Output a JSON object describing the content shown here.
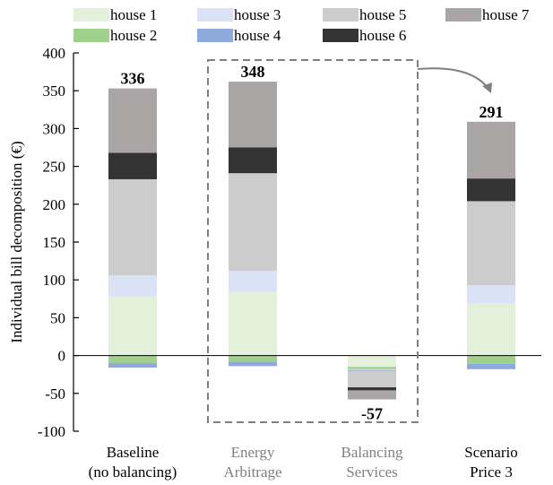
{
  "chart_data": {
    "type": "bar",
    "stacked": true,
    "ylabel": "Individual bill decomposition (€)",
    "ylim": [
      -100,
      400
    ],
    "yticks": [
      -100,
      -50,
      0,
      50,
      100,
      150,
      200,
      250,
      300,
      350,
      400
    ],
    "grid": false,
    "legend_position": "top",
    "categories": [
      {
        "line1": "Baseline",
        "line2": "(no balancing)",
        "color": "#000000"
      },
      {
        "line1": "Energy",
        "line2": "Arbitrage",
        "color": "#808080"
      },
      {
        "line1": "Balancing",
        "line2": "Services",
        "color": "#808080"
      },
      {
        "line1": "Scenario",
        "line2": "Price 3",
        "color": "#000000"
      }
    ],
    "series": [
      {
        "name": "house 1",
        "color": "#e3f1da",
        "values": [
          78,
          84,
          -15,
          69
        ]
      },
      {
        "name": "house 2",
        "color": "#9fd18c",
        "values": [
          -10,
          -8,
          -3,
          -11
        ]
      },
      {
        "name": "house 3",
        "color": "#dae3f5",
        "values": [
          28,
          28,
          -1,
          24
        ]
      },
      {
        "name": "house 4",
        "color": "#8eaadd",
        "values": [
          -6,
          -6,
          -1,
          -7
        ]
      },
      {
        "name": "house 5",
        "color": "#cccccc",
        "values": [
          127,
          129,
          -22,
          111
        ]
      },
      {
        "name": "house 6",
        "color": "#333333",
        "values": [
          35,
          34,
          -4,
          30
        ]
      },
      {
        "name": "house 7",
        "color": "#aba6a6",
        "values": [
          85,
          87,
          -12,
          75
        ]
      }
    ],
    "totals": [
      {
        "label": "336",
        "value": 336
      },
      {
        "label": "348",
        "value": 348
      },
      {
        "label": "-57",
        "value": -57
      },
      {
        "label": "291",
        "value": 291
      }
    ]
  }
}
